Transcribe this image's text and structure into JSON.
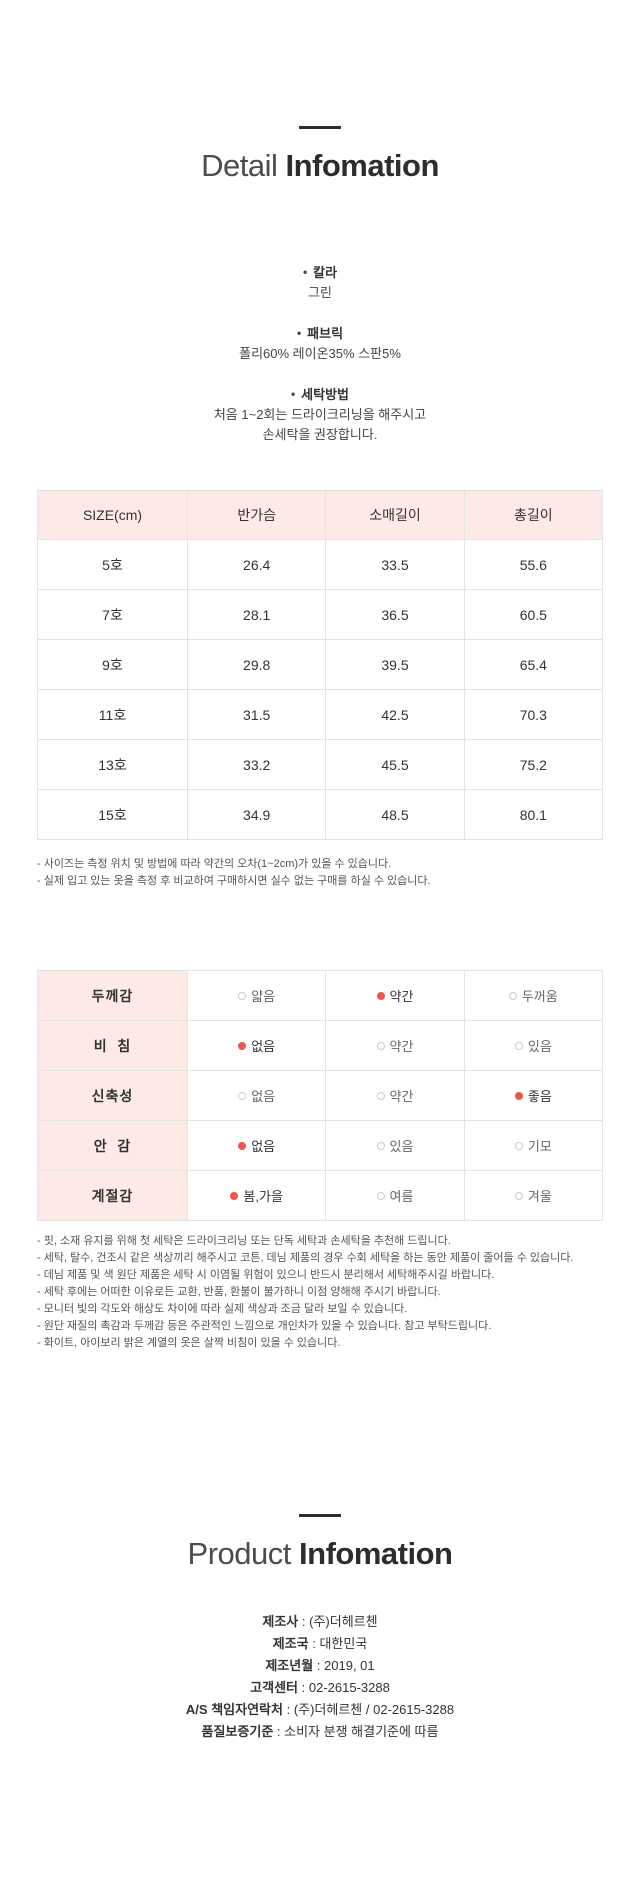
{
  "colors": {
    "accent_red": "#f0544a",
    "table_header_pink": "#fde9e5",
    "table_border_gray": "#e4e4e4",
    "title_dark": "#2d2d2d"
  },
  "detail_section": {
    "title_light": "Detail",
    "title_bold": "Infomation",
    "specs": [
      {
        "label": "칼라",
        "lines": [
          "그린"
        ]
      },
      {
        "label": "패브릭",
        "lines": [
          "폴리60% 레이온35% 스판5%"
        ]
      },
      {
        "label": "세탁방법",
        "lines": [
          "처음 1~2회는 드라이크리닝을 해주시고",
          "손세탁을 권장합니다."
        ]
      }
    ],
    "size_table": {
      "headers": [
        "SIZE(cm)",
        "반가슴",
        "소매길이",
        "총길이"
      ],
      "rows": [
        [
          "5호",
          "26.4",
          "33.5",
          "55.6"
        ],
        [
          "7호",
          "28.1",
          "36.5",
          "60.5"
        ],
        [
          "9호",
          "29.8",
          "39.5",
          "65.4"
        ],
        [
          "11호",
          "31.5",
          "42.5",
          "70.3"
        ],
        [
          "13호",
          "33.2",
          "45.5",
          "75.2"
        ],
        [
          "15호",
          "34.9",
          "48.5",
          "80.1"
        ]
      ]
    },
    "size_notes": [
      "- 사이즈는 측정 위치 및 방법에 따라 약간의 오차(1~2cm)가 있을 수 있습니다.",
      "- 실제 입고 있는 옷을 측정 후 비교하여 구매하시면 실수 없는 구매를 하실 수 있습니다."
    ],
    "attribute_table": {
      "rows": [
        {
          "label": "두께감",
          "options": [
            {
              "text": "얇음",
              "selected": false
            },
            {
              "text": "약간",
              "selected": true
            },
            {
              "text": "두꺼움",
              "selected": false
            }
          ]
        },
        {
          "label": "비  침",
          "options": [
            {
              "text": "없음",
              "selected": true
            },
            {
              "text": "약간",
              "selected": false
            },
            {
              "text": "있음",
              "selected": false
            }
          ]
        },
        {
          "label": "신축성",
          "options": [
            {
              "text": "없음",
              "selected": false
            },
            {
              "text": "약간",
              "selected": false
            },
            {
              "text": "좋음",
              "selected": true
            }
          ]
        },
        {
          "label": "안  감",
          "options": [
            {
              "text": "없음",
              "selected": true
            },
            {
              "text": "있음",
              "selected": false
            },
            {
              "text": "기모",
              "selected": false
            }
          ]
        },
        {
          "label": "계절감",
          "options": [
            {
              "text": "봄,가을",
              "selected": true
            },
            {
              "text": "여름",
              "selected": false
            },
            {
              "text": "겨울",
              "selected": false
            }
          ]
        }
      ]
    },
    "care_notes": [
      "- 핏, 소재 유지를 위해 첫 세탁은 드라이크리닝 또는 단독 세탁과 손세탁을 추천해 드립니다.",
      "- 세탁, 탈수, 건조시 같은 색상끼리 해주시고 코튼, 데님 제품의 경우 수회 세탁을 하는 동안 제품이 줄어들 수 있습니다.",
      "- 데님 제품 및 색 원단 제품은 세탁 시 이염될 위험이 있으니 반드시 분리해서 세탁해주시길 바랍니다.",
      "- 세탁 후에는 어떠한 이유로든 교환, 반품, 환불이 불가하니 이점 양해해 주시기 바랍니다.",
      "- 모니터 빛의 각도와 해상도 차이에 따라 실제 색상과 조금 달라 보일 수 있습니다.",
      "- 원단 재질의 촉감과 두께감 등은 주관적인 느낌으로 개인차가 있을 수 있습니다. 참고 부탁드립니다.",
      "- 화이트, 아이보리 밝은 계열의 옷은 살짝 비침이 있을 수 있습니다."
    ]
  },
  "product_section": {
    "title_light": "Product",
    "title_bold": "Infomation",
    "info": [
      {
        "label": "제조사",
        "value": "(주)더헤르첸"
      },
      {
        "label": "제조국",
        "value": "대한민국"
      },
      {
        "label": "제조년월",
        "value": "2019, 01"
      },
      {
        "label": "고객센터",
        "value": "02-2615-3288"
      },
      {
        "label": "A/S 책임자연락처",
        "value": "(주)더헤르첸 / 02-2615-3288"
      },
      {
        "label": "품질보증기준",
        "value": "소비자 분쟁 해결기준에 따름"
      }
    ]
  }
}
